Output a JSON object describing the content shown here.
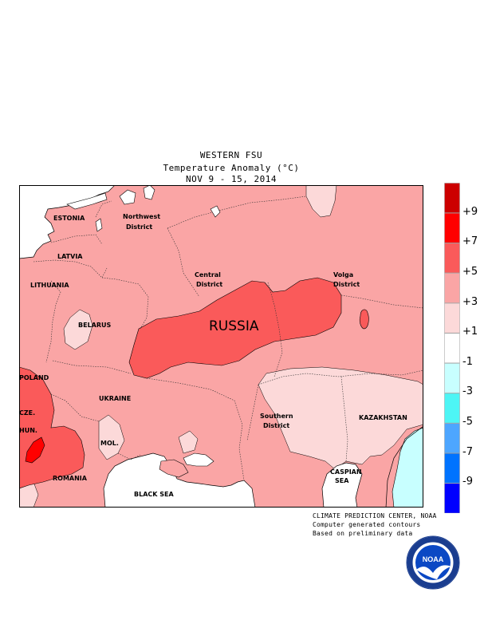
{
  "header": {
    "region": "WESTERN FSU",
    "variable": "Temperature Anomaly (°C)",
    "period": "NOV 9 - 15, 2014"
  },
  "map_labels": {
    "estonia": "ESTONIA",
    "latvia": "LATVIA",
    "lithuania": "LITHUANIA",
    "belarus": "BELARUS",
    "poland": "POLAND",
    "cze": "CZE.",
    "hun": "HUN.",
    "romania": "ROMANIA",
    "mol": "MOL.",
    "ukraine": "UKRAINE",
    "black_sea": "BLACK SEA",
    "russia": "RUSSIA",
    "northwest_1": "Northwest",
    "northwest_2": "District",
    "central_1": "Central",
    "central_2": "District",
    "volga_1": "Volga",
    "volga_2": "District",
    "southern_1": "Southern",
    "southern_2": "District",
    "kazakhstan": "KAZAKHSTAN",
    "caspian_1": "CASPIAN",
    "caspian_2": "SEA"
  },
  "legend": {
    "labels": [
      "+9",
      "+7",
      "+5",
      "+3",
      "+1",
      "-1",
      "-3",
      "-5",
      "-7",
      "-9"
    ],
    "colors": [
      "#cc0000",
      "#ff0000",
      "#fa5a5a",
      "#faa5a5",
      "#fcd9d9",
      "#ffffff",
      "#c8ffff",
      "#4df5f5",
      "#4da6ff",
      "#0073ff",
      "#0000ff"
    ]
  },
  "credits": {
    "line1": "CLIMATE PREDICTION CENTER, NOAA",
    "line2": "Computer generated contours",
    "line3": "Based on preliminary data"
  },
  "logo": {
    "text": "NOAA",
    "ring_color": "#1a3d8f"
  }
}
